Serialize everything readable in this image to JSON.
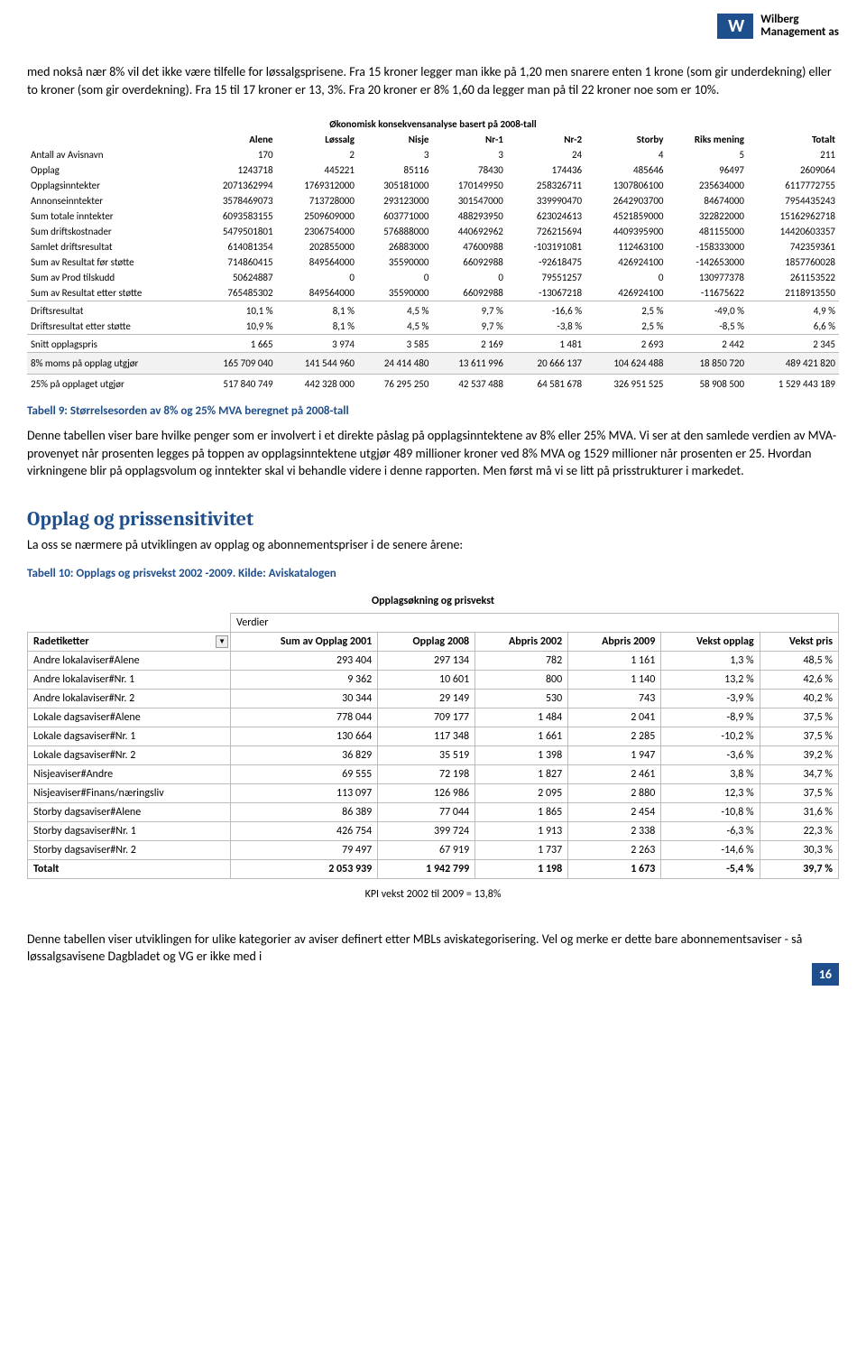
{
  "logo": {
    "mark": "W",
    "line1": "Wilberg",
    "line2": "Management as"
  },
  "para1": "med nokså nær 8% vil det ikke være tilfelle for løssalgsprisene. Fra 15 kroner legger man ikke på 1,20 men snarere enten 1 krone (som gir underdekning) eller to kroner (som gir overdekning). Fra 15 til 17 kroner er 13, 3%.   Fra 20 kroner er 8% 1,60 da legger man på til 22 kroner noe som er 10%.",
  "table1": {
    "title": "Økonomisk konsekvensanalyse basert på 2008-tall",
    "headers": [
      "",
      "Alene",
      "Løssalg",
      "Nisje",
      "Nr-1",
      "Nr-2",
      "Storby",
      "Riks mening",
      "Totalt"
    ],
    "rows": [
      [
        "Antall av Avisnavn",
        "170",
        "2",
        "3",
        "3",
        "24",
        "4",
        "5",
        "211"
      ],
      [
        "Opplag",
        "1243718",
        "445221",
        "85116",
        "78430",
        "174436",
        "485646",
        "96497",
        "2609064"
      ],
      [
        "Opplagsinntekter",
        "2071362994",
        "1769312000",
        "305181000",
        "170149950",
        "258326711",
        "1307806100",
        "235634000",
        "6117772755"
      ],
      [
        "Annonseinntekter",
        "3578469073",
        "713728000",
        "293123000",
        "301547000",
        "339990470",
        "2642903700",
        "84674000",
        "7954435243"
      ],
      [
        "Sum totale inntekter",
        "6093583155",
        "2509609000",
        "603771000",
        "488293950",
        "623024613",
        "4521859000",
        "322822000",
        "15162962718"
      ],
      [
        "Sum driftskostnader",
        "5479501801",
        "2306754000",
        "576888000",
        "440692962",
        "726215694",
        "4409395900",
        "481155000",
        "14420603357"
      ],
      [
        "Samlet driftsresultat",
        "614081354",
        "202855000",
        "26883000",
        "47600988",
        "-103191081",
        "112463100",
        "-158333000",
        "742359361"
      ],
      [
        "Sum av Resultat før støtte",
        "714860415",
        "849564000",
        "35590000",
        "66092988",
        "-92618475",
        "426924100",
        "-142653000",
        "1857760028"
      ],
      [
        "Sum av Prod tilskudd",
        "50624887",
        "0",
        "0",
        "0",
        "79551257",
        "0",
        "130977378",
        "261153522"
      ],
      [
        "Sum av Resultat etter støtte",
        "765485302",
        "849564000",
        "35590000",
        "66092988",
        "-13067218",
        "426924100",
        "-11675622",
        "2118913550"
      ]
    ],
    "drifts": [
      [
        "Driftsresultat",
        "10,1 %",
        "8,1 %",
        "4,5 %",
        "9,7 %",
        "-16,6 %",
        "2,5 %",
        "-49,0 %",
        "4,9 %"
      ],
      [
        "Driftsresultat etter støtte",
        "10,9 %",
        "8,1 %",
        "4,5 %",
        "9,7 %",
        "-3,8 %",
        "2,5 %",
        "-8,5 %",
        "6,6 %"
      ]
    ],
    "snitt": [
      "Snitt opplagspris",
      "1 665",
      "3 974",
      "3 585",
      "2 169",
      "1 481",
      "2 693",
      "2 442",
      "2 345"
    ],
    "moms8": [
      "8% moms på opplag utgjør",
      "165 709 040",
      "141 544 960",
      "24 414 480",
      "13 611 996",
      "20 666 137",
      "104 624 488",
      "18 850 720",
      "489 421 820"
    ],
    "moms25": [
      "25% på opplaget utgjør",
      "517 840 749",
      "442 328 000",
      "76 295 250",
      "42 537 488",
      "64 581 678",
      "326 951 525",
      "58 908 500",
      "1 529 443 189"
    ]
  },
  "caption1": "Tabell 9: Størrelsesorden av 8% og 25% MVA beregnet på 2008-tall",
  "para2": "Denne tabellen viser bare hvilke penger som er involvert i et direkte påslag på opplagsinntektene av 8% eller 25% MVA. Vi ser at den samlede verdien av MVA-provenyet når prosenten legges på toppen av opplagsinntektene utgjør 489 millioner kroner ved 8% MVA og 1529 millioner når prosenten er 25. Hvordan virkningene blir på opplagsvolum og inntekter skal vi behandle videre i denne rapporten. Men først må vi se litt på prisstrukturer i markedet.",
  "h2": "Opplag og prissensitivitet",
  "para3": "La oss se nærmere på utviklingen av  opplag og abonnementspriser i de senere årene:",
  "caption2": "Tabell 10: Opplags og prisvekst 2002 -2009. Kilde: Aviskatalogen",
  "table2": {
    "title": "Opplagsøkning og prisvekst",
    "sub": "Verdier",
    "headers": [
      "Radetiketter",
      "Sum av Opplag 2001",
      "Opplag 2008",
      "Abpris 2002",
      "Abpris 2009",
      "Vekst opplag",
      "Vekst pris"
    ],
    "rows": [
      [
        "Andre lokalaviser#Alene",
        "293 404",
        "297 134",
        "782",
        "1 161",
        "1,3 %",
        "48,5 %"
      ],
      [
        "Andre lokalaviser#Nr. 1",
        "9 362",
        "10 601",
        "800",
        "1 140",
        "13,2 %",
        "42,6 %"
      ],
      [
        "Andre lokalaviser#Nr. 2",
        "30 344",
        "29 149",
        "530",
        "743",
        "-3,9 %",
        "40,2 %"
      ],
      [
        "Lokale dagsaviser#Alene",
        "778 044",
        "709 177",
        "1 484",
        "2 041",
        "-8,9 %",
        "37,5 %"
      ],
      [
        "Lokale dagsaviser#Nr. 1",
        "130 664",
        "117 348",
        "1 661",
        "2 285",
        "-10,2 %",
        "37,5 %"
      ],
      [
        "Lokale dagsaviser#Nr. 2",
        "36 829",
        "35 519",
        "1 398",
        "1 947",
        "-3,6 %",
        "39,2 %"
      ],
      [
        "Nisjeaviser#Andre",
        "69 555",
        "72 198",
        "1 827",
        "2 461",
        "3,8 %",
        "34,7 %"
      ],
      [
        "Nisjeaviser#Finans/næringsliv",
        "113 097",
        "126 986",
        "2 095",
        "2 880",
        "12,3 %",
        "37,5 %"
      ],
      [
        "Storby dagsaviser#Alene",
        "86 389",
        "77 044",
        "1 865",
        "2 454",
        "-10,8 %",
        "31,6 %"
      ],
      [
        "Storby dagsaviser#Nr. 1",
        "426 754",
        "399 724",
        "1 913",
        "2 338",
        "-6,3 %",
        "22,3 %"
      ],
      [
        "Storby dagsaviser#Nr. 2",
        "79 497",
        "67 919",
        "1 737",
        "2 263",
        "-14,6 %",
        "30,3 %"
      ]
    ],
    "total": [
      "Totalt",
      "2 053 939",
      "1 942 799",
      "1 198",
      "1 673",
      "-5,4 %",
      "39,7 %"
    ],
    "kpi": "KPI vekst 2002 til 2009 =  13,8%"
  },
  "para4": "Denne tabellen viser utviklingen for ulike kategorier av aviser definert etter MBLs aviskategorisering. Vel og merke er dette bare abonnementsaviser - så løssalgsavisene Dagbladet og VG er ikke med i",
  "pagenum": "16"
}
